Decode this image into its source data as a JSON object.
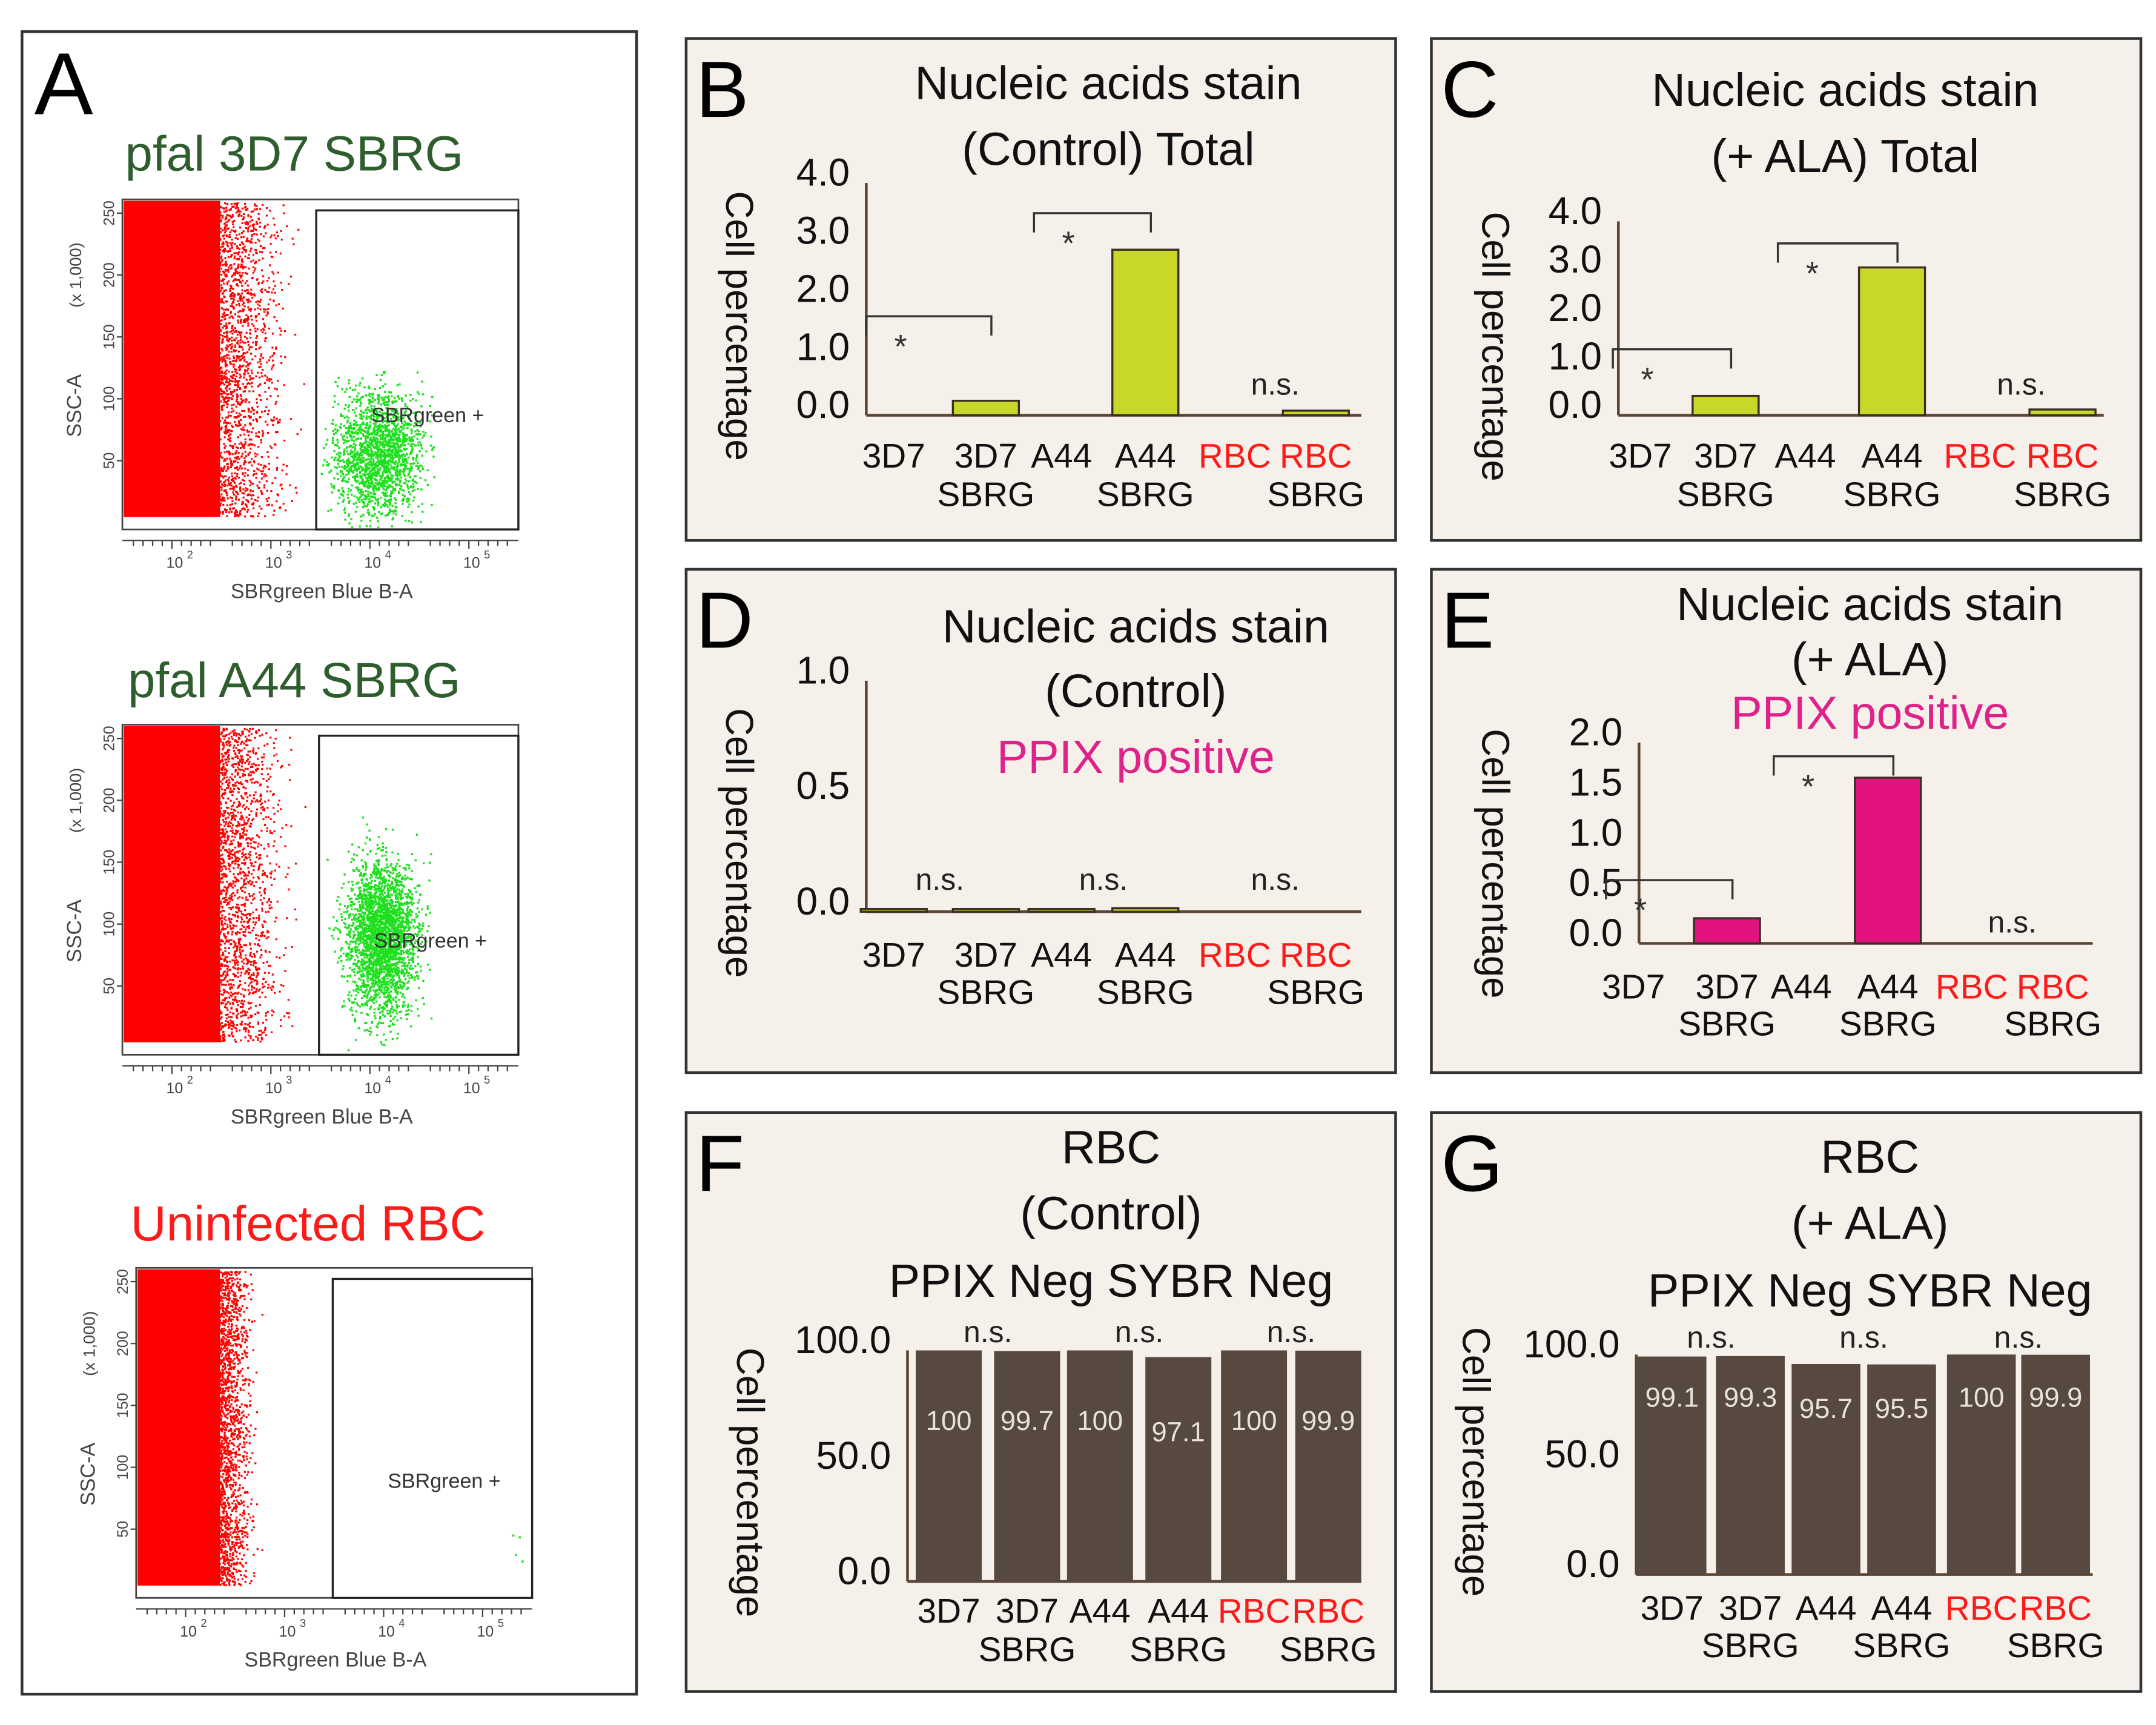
{
  "panel_a": {
    "letter": "A",
    "plots": [
      {
        "title": "pfal 3D7 SBRG",
        "title_color": "#2e5e2e",
        "gate_label": "SBRgreen +",
        "ylabel": "SSC-A",
        "yunit": "(x 1,000)",
        "xlabel": "SBRgreen Blue B-A",
        "yticks": [
          "250",
          "200",
          "150",
          "100",
          "50"
        ],
        "xticks": [
          "10",
          "10",
          "10",
          "10"
        ],
        "xexp": [
          "2",
          "3",
          "4",
          "5"
        ]
      },
      {
        "title": "pfal A44 SBRG",
        "title_color": "#2e5e2e",
        "gate_label": "SBRgreen +",
        "ylabel": "SSC-A",
        "yunit": "(x 1,000)",
        "xlabel": "SBRgreen Blue B-A",
        "yticks": [
          "250",
          "200",
          "150",
          "100",
          "50"
        ],
        "xticks": [
          "10",
          "10",
          "10",
          "10"
        ],
        "xexp": [
          "2",
          "3",
          "4",
          "5"
        ]
      },
      {
        "title": "Uninfected RBC",
        "title_color": "#ff1a1a",
        "gate_label": "SBRgreen +",
        "ylabel": "SSC-A",
        "yunit": "(x 1,000)",
        "xlabel": "SBRgreen Blue B-A",
        "yticks": [
          "250",
          "200",
          "150",
          "100",
          "50"
        ],
        "xticks": [
          "10",
          "10",
          "10",
          "10"
        ],
        "xexp": [
          "2",
          "3",
          "4",
          "5"
        ]
      }
    ]
  },
  "colors": {
    "green_bar": "#c9d62a",
    "magenta_bar": "#e2137e",
    "brown_bar": "#574840",
    "axis": "#5b4636",
    "panel_bg": "#f5f0ea",
    "red_label": "#ff1a1a",
    "ppix": "#e0218a"
  },
  "chart_data": [
    {
      "panel": "B",
      "type": "bar",
      "title_lines": [
        "Nucleic acids stain",
        "(Control) Total"
      ],
      "ylabel": "Cell percentage",
      "ylim": [
        0,
        4
      ],
      "yticks": [
        "0.0",
        "1.0",
        "2.0",
        "3.0",
        "4.0"
      ],
      "categories": [
        [
          "3D7",
          ""
        ],
        [
          "3D7",
          "SBRG"
        ],
        [
          "A44",
          ""
        ],
        [
          "A44",
          "SBRG"
        ],
        [
          "RBC",
          ""
        ],
        [
          "RBC",
          "SBRG"
        ]
      ],
      "category_red": [
        false,
        false,
        false,
        false,
        true,
        true
      ],
      "values": [
        0,
        0.25,
        0,
        2.85,
        0,
        0.08
      ],
      "significance": [
        {
          "pair": [
            0,
            1
          ],
          "label": "*",
          "bracket": true
        },
        {
          "pair": [
            2,
            3
          ],
          "label": "*",
          "bracket": true
        },
        {
          "pair": [
            4,
            5
          ],
          "label": "n.s.",
          "bracket": false
        }
      ]
    },
    {
      "panel": "C",
      "type": "bar",
      "title_lines": [
        "Nucleic acids stain",
        "(+ ALA) Total"
      ],
      "ylabel": "Cell percentage",
      "ylim": [
        0,
        4
      ],
      "yticks": [
        "0.0",
        "1.0",
        "2.0",
        "3.0",
        "4.0"
      ],
      "categories": [
        [
          "3D7",
          ""
        ],
        [
          "3D7",
          "SBRG"
        ],
        [
          "A44",
          ""
        ],
        [
          "A44",
          "SBRG"
        ],
        [
          "RBC",
          ""
        ],
        [
          "RBC",
          "SBRG"
        ]
      ],
      "category_red": [
        false,
        false,
        false,
        false,
        true,
        true
      ],
      "values": [
        0,
        0.4,
        0,
        3.05,
        0,
        0.12
      ],
      "significance": [
        {
          "pair": [
            0,
            1
          ],
          "label": "*",
          "bracket": true
        },
        {
          "pair": [
            2,
            3
          ],
          "label": "*",
          "bracket": true
        },
        {
          "pair": [
            4,
            5
          ],
          "label": "n.s.",
          "bracket": false
        }
      ]
    },
    {
      "panel": "D",
      "type": "bar",
      "title_lines": [
        "Nucleic acids stain",
        "(Control)",
        "PPIX positive"
      ],
      "ylabel": "Cell percentage",
      "ylim": [
        0,
        1
      ],
      "yticks": [
        "0.0",
        "0.5",
        "1.0"
      ],
      "categories": [
        [
          "3D7",
          ""
        ],
        [
          "3D7",
          "SBRG"
        ],
        [
          "A44",
          ""
        ],
        [
          "A44",
          "SBRG"
        ],
        [
          "RBC",
          ""
        ],
        [
          "RBC",
          "SBRG"
        ]
      ],
      "category_red": [
        false,
        false,
        false,
        false,
        true,
        true
      ],
      "values": [
        0.01,
        0.01,
        0.01,
        0.015,
        0,
        0
      ],
      "significance": [
        {
          "pair": [
            0,
            1
          ],
          "label": "n.s.",
          "bracket": false
        },
        {
          "pair": [
            2,
            3
          ],
          "label": "n.s.",
          "bracket": false
        },
        {
          "pair": [
            4,
            5
          ],
          "label": "n.s.",
          "bracket": false
        }
      ]
    },
    {
      "panel": "E",
      "type": "bar",
      "title_lines": [
        "Nucleic acids stain",
        "(+ ALA)",
        "PPIX positive"
      ],
      "ylabel": "Cell percentage",
      "ylim": [
        0,
        2
      ],
      "yticks": [
        "0.0",
        "0.5",
        "1.0",
        "1.5",
        "2.0"
      ],
      "categories": [
        [
          "3D7",
          ""
        ],
        [
          "3D7",
          "SBRG"
        ],
        [
          "A44",
          ""
        ],
        [
          "A44",
          "SBRG"
        ],
        [
          "RBC",
          ""
        ],
        [
          "RBC",
          "SBRG"
        ]
      ],
      "category_red": [
        false,
        false,
        false,
        false,
        true,
        true
      ],
      "values": [
        0,
        0.25,
        0,
        1.65,
        0,
        0
      ],
      "significance": [
        {
          "pair": [
            0,
            1
          ],
          "label": "*",
          "bracket": true
        },
        {
          "pair": [
            2,
            3
          ],
          "label": "*",
          "bracket": true
        },
        {
          "pair": [
            4,
            5
          ],
          "label": "n.s.",
          "bracket": false
        }
      ]
    },
    {
      "panel": "F",
      "type": "bar",
      "title_lines": [
        "RBC",
        "(Control)",
        "PPIX Neg SYBR Neg"
      ],
      "ylabel": "Cell percentage",
      "ylim": [
        0,
        100
      ],
      "yticks": [
        "0.0",
        "50.0",
        "100.0"
      ],
      "categories": [
        [
          "3D7",
          ""
        ],
        [
          "3D7",
          "SBRG"
        ],
        [
          "A44",
          ""
        ],
        [
          "A44",
          "SBRG"
        ],
        [
          "RBC",
          ""
        ],
        [
          "RBC",
          "SBRG"
        ]
      ],
      "category_red": [
        false,
        false,
        false,
        false,
        true,
        true
      ],
      "values": [
        100,
        99.7,
        100,
        97.1,
        100,
        99.9
      ],
      "value_labels": [
        "100",
        "99.7",
        "100",
        "97.1",
        "100",
        "99.9"
      ],
      "significance": [
        {
          "pair": [
            0,
            1
          ],
          "label": "n.s.",
          "bracket": false
        },
        {
          "pair": [
            2,
            3
          ],
          "label": "n.s.",
          "bracket": false
        },
        {
          "pair": [
            4,
            5
          ],
          "label": "n.s.",
          "bracket": false
        }
      ]
    },
    {
      "panel": "G",
      "type": "bar",
      "title_lines": [
        "RBC",
        "(+ ALA)",
        "PPIX Neg SYBR Neg"
      ],
      "ylabel": "Cell percentage",
      "ylim": [
        0,
        100
      ],
      "yticks": [
        "0.0",
        "50.0",
        "100.0"
      ],
      "categories": [
        [
          "3D7",
          ""
        ],
        [
          "3D7",
          "SBRG"
        ],
        [
          "A44",
          ""
        ],
        [
          "A44",
          "SBRG"
        ],
        [
          "RBC",
          ""
        ],
        [
          "RBC",
          "SBRG"
        ]
      ],
      "category_red": [
        false,
        false,
        false,
        false,
        true,
        true
      ],
      "values": [
        99.1,
        99.3,
        95.7,
        95.5,
        100,
        99.9
      ],
      "value_labels": [
        "99.1",
        "99.3",
        "95.7",
        "95.5",
        "100",
        "99.9"
      ],
      "significance": [
        {
          "pair": [
            0,
            1
          ],
          "label": "n.s.",
          "bracket": false
        },
        {
          "pair": [
            2,
            3
          ],
          "label": "n.s.",
          "bracket": false
        },
        {
          "pair": [
            4,
            5
          ],
          "label": "n.s.",
          "bracket": false
        }
      ]
    }
  ]
}
